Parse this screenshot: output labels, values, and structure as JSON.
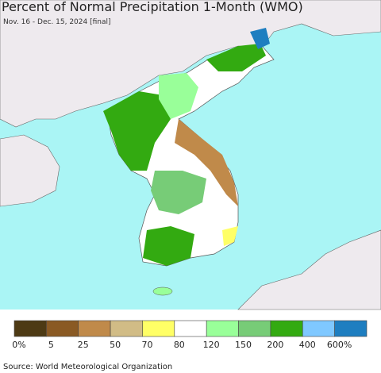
{
  "header": {
    "title": "Percent of Normal Precipitation 1-Month (WMO)",
    "subtitle": "Nov. 16 - Dec. 15, 2024 [final]"
  },
  "legend": {
    "colors": [
      "#4d3a14",
      "#8a5a24",
      "#c08a4a",
      "#d1bc86",
      "#ffff66",
      "#ffffff",
      "#99ff99",
      "#77cc77",
      "#33aa11",
      "#7fc8ff",
      "#1e7ec0"
    ],
    "labels": [
      "0%",
      "5",
      "25",
      "50",
      "70",
      "80",
      "120",
      "150",
      "200",
      "400",
      "600%"
    ]
  },
  "footer": {
    "source": "Source: World Meteorological Organization"
  }
}
